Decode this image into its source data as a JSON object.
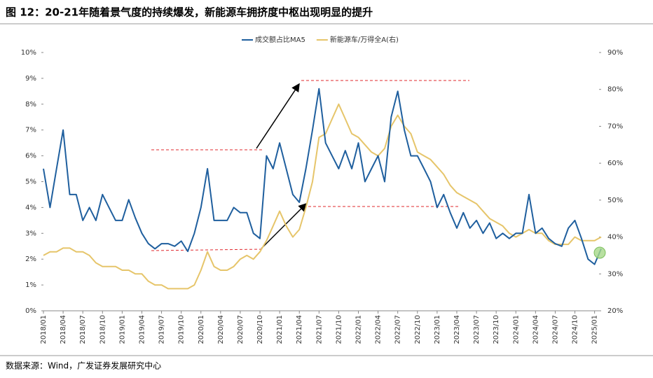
{
  "chart_data": {
    "type": "line",
    "title": "图 12：20-21年随着景气度的持续爆发，新能源车拥挤度中枢出现明显的提升",
    "source": "数据来源：Wind，广发证券发展研究中心",
    "x": [
      "2018/01",
      null,
      null,
      "2018/04",
      null,
      null,
      "2018/07",
      null,
      null,
      "2018/10",
      null,
      null,
      "2019/01",
      null,
      null,
      "2019/04",
      null,
      null,
      "2019/07",
      null,
      null,
      "2019/10",
      null,
      null,
      "2020/01",
      null,
      null,
      "2020/04",
      null,
      null,
      "2020/07",
      null,
      null,
      "2020/10",
      null,
      null,
      "2021/01",
      null,
      null,
      "2021/04",
      null,
      null,
      "2021/07",
      null,
      null,
      "2021/10",
      null,
      null,
      "2022/01",
      null,
      null,
      "2022/04",
      null,
      null,
      "2022/07",
      null,
      null,
      "2022/10",
      null,
      null,
      "2023/01",
      null,
      null,
      "2023/04",
      null,
      null,
      "2023/07",
      null,
      null,
      "2023/10",
      null,
      null,
      "2024/01",
      null,
      null,
      "2024/04",
      null,
      null,
      "2024/07",
      null,
      null,
      "2024/10",
      null,
      null,
      "2025/01",
      null
    ],
    "series": [
      {
        "name": "成交额占比MA5",
        "color": "#1f5f9e",
        "axis": "y",
        "values": [
          5.5,
          4.0,
          5.5,
          7.0,
          4.5,
          4.5,
          3.5,
          4.0,
          3.5,
          4.5,
          4.0,
          3.5,
          3.5,
          4.3,
          3.6,
          3.0,
          2.6,
          2.4,
          2.6,
          2.6,
          2.5,
          2.7,
          2.3,
          3.0,
          4.0,
          5.5,
          3.5,
          3.5,
          3.5,
          4.0,
          3.8,
          3.8,
          3.0,
          2.8,
          6.0,
          5.5,
          6.5,
          5.5,
          4.5,
          4.2,
          5.5,
          7.0,
          8.6,
          6.5,
          6.0,
          5.5,
          6.2,
          5.5,
          6.5,
          5.0,
          5.5,
          6.0,
          5.0,
          7.5,
          8.5,
          7.0,
          6.0,
          6.0,
          5.5,
          5.0,
          4.0,
          4.5,
          3.8,
          3.2,
          3.8,
          3.2,
          3.5,
          3.0,
          3.4,
          2.8,
          3.0,
          2.8,
          3.0,
          3.0,
          4.5,
          3.0,
          3.2,
          2.8,
          2.6,
          2.5,
          3.2,
          3.5,
          2.8,
          2.0,
          1.8,
          2.4
        ]
      },
      {
        "name": "新能源车/万得全A(右)",
        "color": "#e6c56a",
        "axis": "y2",
        "values": [
          35,
          36,
          36,
          37,
          37,
          36,
          36,
          35,
          33,
          32,
          32,
          32,
          31,
          31,
          30,
          30,
          28,
          27,
          27,
          26,
          26,
          26,
          26,
          27,
          31,
          36,
          32,
          31,
          31,
          32,
          34,
          35,
          34,
          36,
          39,
          43,
          47,
          43,
          40,
          42,
          48,
          55,
          67,
          68,
          72,
          76,
          72,
          68,
          67,
          65,
          63,
          62,
          64,
          70,
          73,
          70,
          68,
          63,
          62,
          61,
          59,
          57,
          54,
          52,
          51,
          50,
          49,
          47,
          45,
          44,
          43,
          41,
          40,
          41,
          42,
          41,
          41,
          39,
          38,
          38,
          38,
          40,
          39,
          39,
          39,
          40
        ]
      }
    ],
    "ylim": [
      0,
      10
    ],
    "yticks": [
      {
        "value": 0,
        "label": "0%"
      },
      {
        "value": 1,
        "label": "1%"
      },
      {
        "value": 2,
        "label": "2%"
      },
      {
        "value": 3,
        "label": "3%"
      },
      {
        "value": 4,
        "label": "4%"
      },
      {
        "value": 5,
        "label": "5%"
      },
      {
        "value": 6,
        "label": "6%"
      },
      {
        "value": 7,
        "label": "7%"
      },
      {
        "value": 8,
        "label": "8%"
      },
      {
        "value": 9,
        "label": "9%"
      },
      {
        "value": 10,
        "label": "10%"
      }
    ],
    "y2lim": [
      20,
      90
    ],
    "y2ticks": [
      {
        "value": 20,
        "label": "20%"
      },
      {
        "value": 30,
        "label": "30%"
      },
      {
        "value": 40,
        "label": "40%"
      },
      {
        "value": 50,
        "label": "50%"
      },
      {
        "value": 60,
        "label": "60%"
      },
      {
        "value": 70,
        "label": "70%"
      },
      {
        "value": 80,
        "label": "80%"
      },
      {
        "value": 90,
        "label": "90%"
      }
    ]
  }
}
